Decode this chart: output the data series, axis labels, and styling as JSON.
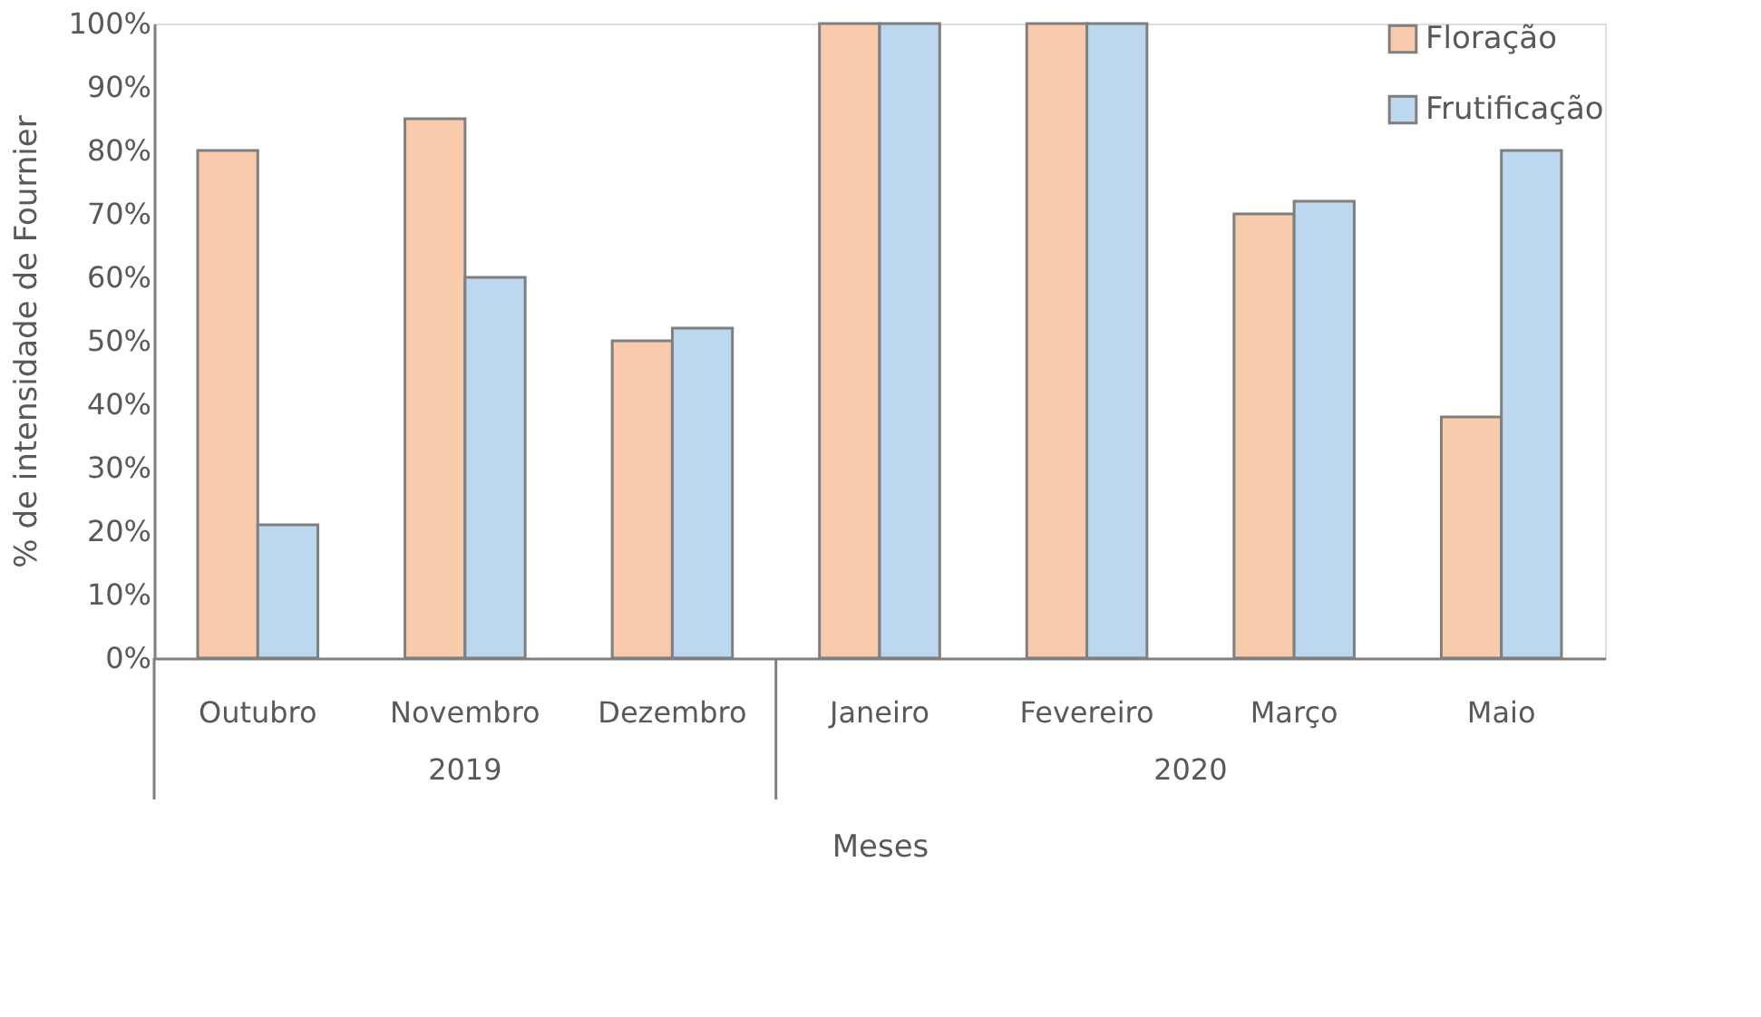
{
  "chart_data": {
    "type": "bar",
    "xlabel": "Meses",
    "ylabel": "% de intensidade de  Fournier",
    "categories": [
      "Outubro",
      "Novembro",
      "Dezembro",
      "Janeiro",
      "Fevereiro",
      "Março",
      "Maio"
    ],
    "series": [
      {
        "name": "Floração",
        "color": "#f8cbad",
        "values": [
          80,
          85,
          50,
          100,
          100,
          70,
          38
        ]
      },
      {
        "name": "Frutificação",
        "color": "#bdd7ee",
        "values": [
          21,
          60,
          52,
          100,
          100,
          72,
          80
        ]
      }
    ],
    "annotations": [
      "2019",
      "2020"
    ],
    "ylim": [
      0,
      100
    ],
    "yticks": [
      {
        "value": 0,
        "label": "0%"
      },
      {
        "value": 10,
        "label": "10%"
      },
      {
        "value": 20,
        "label": "20%"
      },
      {
        "value": 30,
        "label": "30%"
      },
      {
        "value": 40,
        "label": "40%"
      },
      {
        "value": 50,
        "label": "50%"
      },
      {
        "value": 60,
        "label": "60%"
      },
      {
        "value": 70,
        "label": "70%"
      },
      {
        "value": 80,
        "label": "80%"
      },
      {
        "value": 90,
        "label": "90%"
      },
      {
        "value": 100,
        "label": "100%"
      }
    ],
    "grid": false,
    "legend": "top right"
  }
}
